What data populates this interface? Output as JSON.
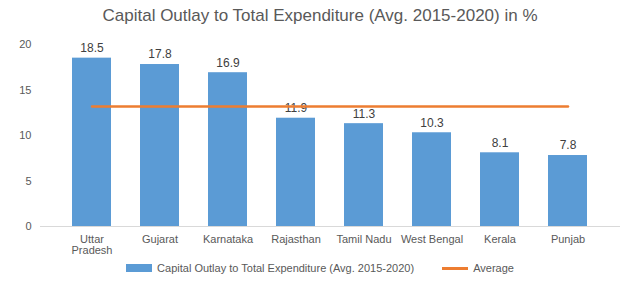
{
  "chart_data": {
    "type": "bar",
    "title": "Capital Outlay to Total Expenditure (Avg. 2015-2020) in %",
    "categories": [
      "Uttar Pradesh",
      "Gujarat",
      "Karnataka",
      "Rajasthan",
      "Tamil Nadu",
      "West Bengal",
      "Kerala",
      "Punjab"
    ],
    "series": [
      {
        "name": "Capital Outlay to Total Expenditure (Avg. 2015-2020)",
        "type": "bar",
        "color": "#5b9bd5",
        "values": [
          18.5,
          17.8,
          16.9,
          11.9,
          11.3,
          10.3,
          8.1,
          7.8
        ]
      },
      {
        "name": "Average",
        "type": "line",
        "color": "#ed7d31",
        "values": [
          13.2,
          13.2,
          13.2,
          13.2,
          13.2,
          13.2,
          13.2,
          13.2
        ]
      }
    ],
    "ylim": [
      0,
      20
    ],
    "yticks": [
      0,
      5,
      10,
      15,
      20
    ],
    "grid": false,
    "data_labels": true,
    "legend": "bottom"
  }
}
